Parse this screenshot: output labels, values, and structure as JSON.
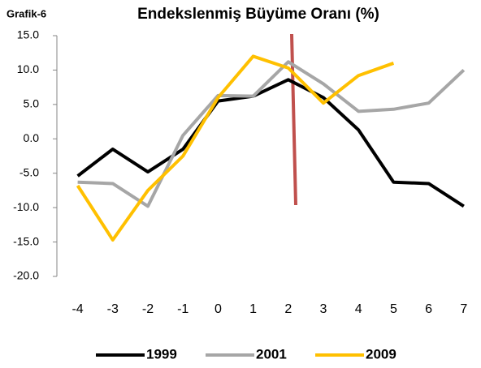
{
  "chart_data": {
    "type": "line",
    "label": "Grafik-6",
    "title": "Endekslenmiş Büyüme Oranı (%)",
    "categories": [
      "-4",
      "-3",
      "-2",
      "-1",
      "0",
      "1",
      "2",
      "3",
      "4",
      "5",
      "6",
      "7"
    ],
    "series": [
      {
        "name": "1999",
        "color": "#000000",
        "values": [
          -5.4,
          -1.5,
          -4.8,
          -1.5,
          5.5,
          6.2,
          8.6,
          6.0,
          1.3,
          -6.3,
          -6.5,
          -9.8
        ]
      },
      {
        "name": "2001",
        "color": "#a6a6a6",
        "values": [
          -6.3,
          -6.5,
          -9.8,
          0.5,
          6.3,
          6.2,
          11.2,
          8.0,
          4.0,
          4.3,
          5.2,
          10.0
        ]
      },
      {
        "name": "2009",
        "color": "#ffc000",
        "values": [
          -6.8,
          -14.7,
          -7.5,
          -2.5,
          6.0,
          12.0,
          10.3,
          5.2,
          9.2,
          11.0,
          null,
          null
        ]
      }
    ],
    "ylim": [
      -20,
      15
    ],
    "yticks": [
      {
        "value": -20,
        "label": "-20.0"
      },
      {
        "value": -15,
        "label": "-15.0"
      },
      {
        "value": -10,
        "label": "-10.0"
      },
      {
        "value": -5,
        "label": "-5.0"
      },
      {
        "value": 0,
        "label": "0.0"
      },
      {
        "value": 5,
        "label": "5.0"
      },
      {
        "value": 10,
        "label": "10.0"
      },
      {
        "value": 15,
        "label": "15.0"
      }
    ],
    "legend": "bottom"
  }
}
